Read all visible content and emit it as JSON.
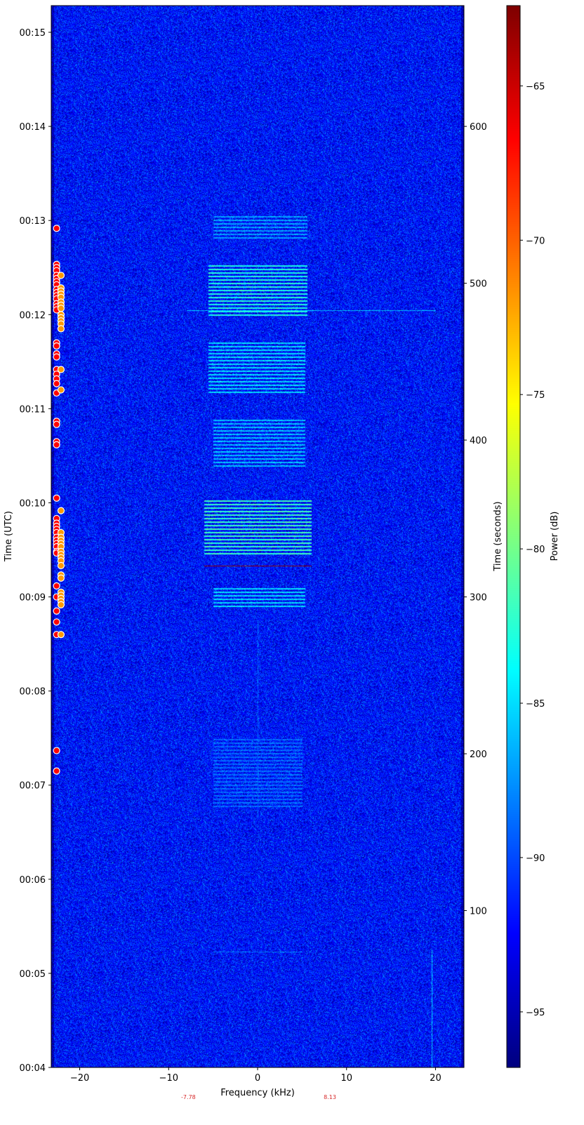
{
  "chart_data": {
    "type": "heatmap",
    "xlabel": "Frequency (kHz)",
    "ylabel_left": "Time (UTC)",
    "ylabel_right": "Time (seconds)",
    "colorbar_label": "Power (dB)",
    "colormap": "jet",
    "xlim": [
      -23.2,
      23.2
    ],
    "ylim_seconds": [
      0,
      677
    ],
    "ylim_utc": [
      "00:04:00",
      "00:15:17"
    ],
    "clim": [
      -96.8,
      -62.4
    ],
    "x_ticks": [
      -20,
      -10,
      0,
      10,
      20
    ],
    "x_tick_labels": [
      "−20",
      "−10",
      "0",
      "10",
      "20"
    ],
    "y_left_ticks_seconds": [
      0,
      60,
      120,
      180,
      240,
      300,
      360,
      420,
      480,
      540,
      600,
      660
    ],
    "y_left_tick_labels": [
      "00:04",
      "00:05",
      "00:06",
      "00:07",
      "00:08",
      "00:09",
      "00:10",
      "00:11",
      "00:12",
      "00:13",
      "00:14",
      "00:15"
    ],
    "y_right_ticks": [
      100,
      200,
      300,
      400,
      500,
      600
    ],
    "y_right_tick_labels": [
      "100",
      "200",
      "300",
      "400",
      "500",
      "600"
    ],
    "colorbar_ticks": [
      -95,
      -90,
      -85,
      -80,
      -75,
      -70,
      -65
    ],
    "colorbar_tick_labels": [
      "−95",
      "−90",
      "−85",
      "−80",
      "−75",
      "−70",
      "−65"
    ],
    "noise_floor_db": -92,
    "bursts": [
      {
        "t_start": 528,
        "t_end": 543,
        "f_min": -5,
        "f_max": 5.5,
        "level_db": -87
      },
      {
        "t_start": 479,
        "t_end": 513,
        "f_min": -5.5,
        "f_max": 5.5,
        "level_db": -83
      },
      {
        "t_start": 429,
        "t_end": 463,
        "f_min": -5.5,
        "f_max": 5.3,
        "level_db": -85
      },
      {
        "t_start": 382,
        "t_end": 413,
        "f_min": -5,
        "f_max": 5.3,
        "level_db": -86
      },
      {
        "t_start": 327,
        "t_end": 363,
        "f_min": -6,
        "f_max": 6,
        "level_db": -82
      },
      {
        "t_start": 293,
        "t_end": 307,
        "f_min": -5,
        "f_max": 5.3,
        "level_db": -85
      },
      {
        "t_start": 165,
        "t_end": 210,
        "f_min": -5,
        "f_max": 5,
        "level_db": -89
      }
    ],
    "lines": [
      {
        "t": 320,
        "f_min": -6,
        "f_max": 6,
        "level_db": -62.4
      },
      {
        "t": 483,
        "f_min": -8,
        "f_max": 20,
        "level_db": -86
      },
      {
        "t": 74,
        "f_min": -5,
        "f_max": 5,
        "level_db": -88
      }
    ],
    "vertical_lines": [
      {
        "f": 19.6,
        "t_start": 0,
        "t_end": 75,
        "level_db": -86
      },
      {
        "f": 0,
        "t_start": 160,
        "t_end": 285,
        "level_db": -89
      }
    ],
    "markers": [
      {
        "name": "red",
        "color": "#ff0000",
        "freq_khz": -22.6,
        "times_s": [
          535,
          512,
          510,
          508,
          505,
          503,
          501,
          499,
          496,
          494,
          492,
          490,
          487,
          485,
          483,
          462,
          460,
          455,
          453,
          445,
          442,
          439,
          436,
          430,
          412,
          410,
          399,
          397,
          363,
          350,
          347,
          345,
          343,
          341,
          338,
          336,
          334,
          332,
          329,
          328,
          307,
          300,
          291,
          284,
          276,
          202,
          189
        ]
      },
      {
        "name": "orange",
        "color": "#ff9900",
        "freq_khz": -22.1,
        "times_s": [
          505,
          497,
          495,
          493,
          491,
          488,
          486,
          484,
          480,
          478,
          476,
          474,
          471,
          445,
          432,
          355,
          341,
          338,
          336,
          334,
          332,
          329,
          327,
          325,
          323,
          320,
          314,
          312,
          303,
          301,
          299,
          297,
          295,
          276
        ]
      }
    ],
    "annotations": [
      {
        "text": "-7.78",
        "freq_khz": -7.78,
        "color": "#d62728"
      },
      {
        "text": "8.13",
        "freq_khz": 8.13,
        "color": "#d62728"
      }
    ]
  }
}
